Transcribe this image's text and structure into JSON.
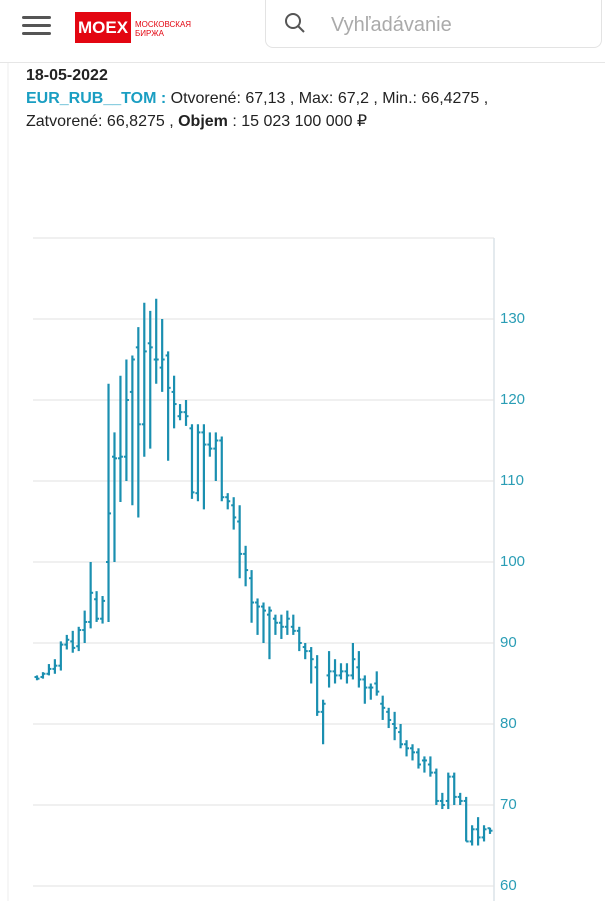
{
  "header": {
    "logo": "MOEX",
    "logo_sub": "МОСКОВСКАЯ БИРЖА",
    "search_placeholder": "Vyhľadávanie"
  },
  "info": {
    "date": "18-05-2022",
    "ticker": "EUR_RUB__TOM :",
    "line1": "Otvorené: 67,13 , Max: 67,2 , Min.: 66,4275 ,",
    "line2": "Zatvorené: 66,8275 ,",
    "volume_label": "Objem",
    "volume": ": 15 023 100 000 ₽"
  },
  "chart_data": {
    "type": "ohlc",
    "color": "#1a8fb0",
    "grid": true,
    "ylim": [
      60,
      140
    ],
    "yticks": [
      60,
      70,
      80,
      90,
      100,
      110,
      120,
      130
    ],
    "open": [
      85.8,
      85.8,
      86.2,
      86.8,
      87.2,
      89.8,
      90.2,
      89.6,
      91.6,
      92.6,
      95.4,
      93.0,
      100.0,
      113.0,
      112.8,
      113.0,
      121.0,
      126.5,
      117.0,
      127.0,
      125.0,
      124.0,
      125.5,
      121.0,
      118.0,
      118.5,
      116.5,
      108.5,
      116.0,
      114.5,
      114.0,
      115.0,
      108.0,
      107.0,
      105.0,
      101.0,
      98.0,
      95.0,
      94.5,
      93.5,
      93.0,
      92.5,
      92.0,
      92.0,
      91.5,
      89.5,
      89.0,
      87.0,
      81.5,
      86.0,
      86.5,
      86.0,
      86.5,
      86.0,
      87.0,
      85.5,
      84.5,
      85.0,
      82.5,
      81.5,
      80.0,
      79.0,
      77.5,
      77.0,
      76.5,
      75.5,
      75.0,
      74.0,
      70.5,
      70.5,
      73.5,
      71.0,
      70.5,
      65.5,
      67.0,
      66.0,
      67.13
    ],
    "high": [
      86.0,
      86.4,
      87.4,
      88.0,
      90.2,
      91.0,
      91.5,
      92.0,
      94.0,
      100.0,
      96.4,
      95.8,
      122.0,
      116.0,
      123.0,
      125.0,
      125.5,
      129.0,
      132.0,
      131.0,
      132.5,
      130.0,
      126.0,
      123.0,
      119.5,
      120.0,
      117.0,
      117.0,
      117.0,
      116.0,
      116.0,
      115.5,
      108.5,
      108.0,
      107.0,
      102.0,
      99.0,
      95.5,
      95.0,
      94.5,
      93.5,
      93.5,
      94.0,
      93.5,
      92.0,
      90.0,
      89.5,
      88.5,
      83.0,
      89.0,
      88.0,
      87.5,
      87.5,
      90.0,
      89.0,
      86.0,
      85.0,
      86.5,
      83.5,
      82.0,
      81.5,
      80.0,
      78.0,
      77.5,
      77.0,
      76.0,
      76.0,
      74.5,
      71.5,
      74.0,
      74.0,
      71.5,
      71.0,
      67.5,
      68.5,
      67.5,
      67.2
    ],
    "low": [
      85.4,
      85.6,
      86.0,
      86.2,
      86.6,
      89.2,
      88.8,
      89.0,
      90.0,
      91.8,
      92.6,
      92.4,
      92.6,
      100.0,
      107.4,
      110.0,
      107.0,
      105.5,
      113.0,
      114.0,
      122.0,
      121.0,
      112.5,
      116.5,
      117.5,
      116.8,
      107.8,
      107.5,
      106.5,
      113.0,
      110.0,
      107.5,
      106.5,
      104.0,
      98.0,
      97.0,
      92.5,
      91.0,
      90.0,
      88.0,
      91.0,
      90.5,
      91.0,
      91.0,
      89.0,
      88.0,
      85.0,
      81.0,
      77.5,
      84.5,
      85.0,
      85.5,
      85.0,
      85.5,
      84.5,
      82.5,
      83.0,
      83.5,
      80.5,
      79.5,
      78.0,
      77.0,
      76.0,
      75.5,
      74.5,
      74.0,
      73.5,
      70.0,
      69.5,
      69.5,
      70.0,
      70.0,
      65.5,
      65.0,
      65.0,
      65.5,
      66.4275
    ],
    "close": [
      85.6,
      86.2,
      86.8,
      87.2,
      89.8,
      90.4,
      89.4,
      91.6,
      92.6,
      96.2,
      93.0,
      95.2,
      106.0,
      112.8,
      113.0,
      120.0,
      125.0,
      117.0,
      126.0,
      126.5,
      125.0,
      125.0,
      121.5,
      119.5,
      118.5,
      118.0,
      108.6,
      116.0,
      114.5,
      114.0,
      115.0,
      108.0,
      107.5,
      105.5,
      101.0,
      99.0,
      95.0,
      94.5,
      94.0,
      94.0,
      92.5,
      92.0,
      93.0,
      91.5,
      90.0,
      89.0,
      88.0,
      81.5,
      82.5,
      86.5,
      86.0,
      86.5,
      86.0,
      88.0,
      85.5,
      84.5,
      84.5,
      84.0,
      82.0,
      80.5,
      79.5,
      77.5,
      77.0,
      76.5,
      75.0,
      75.5,
      74.0,
      70.5,
      70.0,
      73.5,
      71.0,
      70.5,
      65.5,
      67.0,
      66.0,
      67.0,
      66.8275
    ]
  }
}
